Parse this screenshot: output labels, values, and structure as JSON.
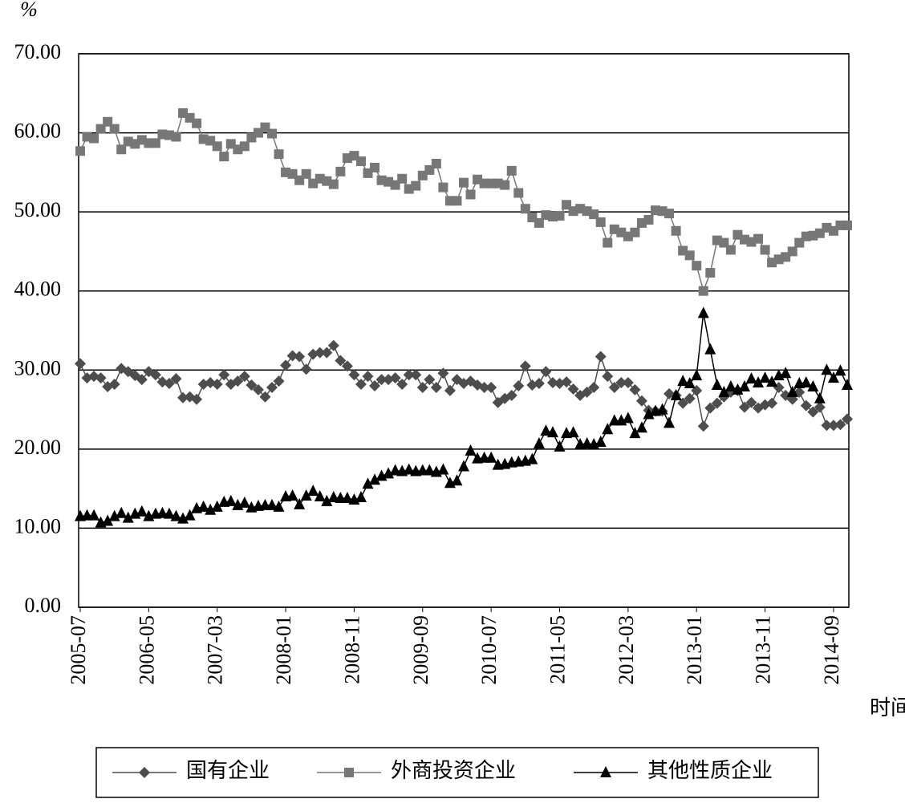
{
  "chart_data": {
    "type": "line",
    "ylabel": "%",
    "xlabel": "时间",
    "categories": [
      "2005-07",
      null,
      null,
      null,
      null,
      null,
      null,
      null,
      null,
      null,
      "2006-05",
      null,
      null,
      null,
      null,
      null,
      null,
      null,
      null,
      null,
      "2007-03",
      null,
      null,
      null,
      null,
      null,
      null,
      null,
      null,
      null,
      "2008-01",
      null,
      null,
      null,
      null,
      null,
      null,
      null,
      null,
      null,
      "2008-11",
      null,
      null,
      null,
      null,
      null,
      null,
      null,
      null,
      null,
      "2009-09",
      null,
      null,
      null,
      null,
      null,
      null,
      null,
      null,
      null,
      "2010-07",
      null,
      null,
      null,
      null,
      null,
      null,
      null,
      null,
      null,
      "2011-05",
      null,
      null,
      null,
      null,
      null,
      null,
      null,
      null,
      null,
      "2012-03",
      null,
      null,
      null,
      null,
      null,
      null,
      null,
      null,
      null,
      "2013-01",
      null,
      null,
      null,
      null,
      null,
      null,
      null,
      null,
      null,
      "2013-11",
      null,
      null,
      null,
      null,
      null,
      null,
      null,
      null,
      null,
      "2014-09",
      null,
      null
    ],
    "series": [
      {
        "name": "国有企业",
        "color": "#4d4d4d",
        "marker": "diamond",
        "values": [
          30.8,
          29,
          29.2,
          29,
          27.9,
          28.2,
          30.2,
          29.8,
          29.3,
          28.8,
          29.8,
          29.4,
          28.5,
          28.3,
          28.9,
          26.5,
          26.6,
          26.3,
          28.2,
          28.4,
          28.2,
          29.4,
          28.2,
          28.6,
          29.2,
          28.1,
          27.5,
          26.6,
          27.8,
          28.6,
          30.6,
          31.8,
          31.7,
          30.1,
          32,
          32.2,
          32.2,
          33.1,
          31.2,
          30.5,
          29.4,
          28.2,
          29.2,
          28,
          28.8,
          28.8,
          29,
          28.2,
          29.4,
          29.4,
          27.8,
          28.8,
          27.8,
          29.6,
          27.4,
          28.8,
          28.3,
          28.6,
          28.1,
          27.8,
          27.8,
          25.9,
          26.4,
          26.8,
          28,
          30.5,
          28.1,
          28.3,
          29.8,
          28.4,
          28.3,
          28.5,
          27.6,
          26.8,
          27.2,
          27.8,
          31.7,
          29.2,
          27.8,
          28.4,
          28.4,
          27.5,
          26.1,
          24.9,
          24.8,
          24.8,
          27,
          26.8,
          25.8,
          26.4,
          27.4,
          22.9,
          25.2,
          25.8,
          26.6,
          27.2,
          27.4,
          25.3,
          25.9,
          25.2,
          25.6,
          25.8,
          27.8,
          26.8,
          26.3,
          27.2,
          25.5,
          24.7,
          25.3,
          23,
          23,
          23.1,
          23.8
        ]
      },
      {
        "name": "外商投资企业",
        "color": "#777777",
        "marker": "square",
        "values": [
          57.7,
          59.5,
          59.3,
          60.5,
          61.4,
          60.5,
          57.9,
          58.9,
          58.6,
          59.1,
          58.7,
          58.7,
          59.8,
          59.7,
          59.5,
          62.5,
          61.9,
          61.2,
          59.2,
          59,
          58.3,
          57,
          58.6,
          57.9,
          58.3,
          59.4,
          60,
          60.7,
          59.9,
          57.3,
          55,
          54.8,
          54,
          54.8,
          53.6,
          54.2,
          53.9,
          53.5,
          55.1,
          56.8,
          57.1,
          56.4,
          54.9,
          55.6,
          54,
          53.8,
          53.4,
          54.2,
          52.9,
          53.3,
          54.6,
          55.3,
          56.1,
          53.1,
          51.4,
          51.4,
          53.7,
          52.2,
          54.1,
          53.6,
          53.6,
          53.6,
          53.4,
          55.2,
          52.4,
          50.4,
          49.3,
          48.6,
          49.6,
          49.4,
          49.5,
          50.9,
          50.1,
          50.4,
          50.1,
          49.7,
          48.7,
          46.1,
          47.8,
          47.4,
          46.9,
          47.4,
          48.6,
          49,
          50.2,
          50.1,
          49.8,
          47.6,
          45.1,
          44.5,
          43.2,
          40,
          42.3,
          46.4,
          46.1,
          45.2,
          47.1,
          46.5,
          46.2,
          46.6,
          45.2,
          43.6,
          44,
          44.3,
          45,
          46.1,
          46.9,
          47,
          47.3,
          48,
          47.6,
          48.3,
          48.3
        ]
      },
      {
        "name": "其他性质企业",
        "color": "#000000",
        "marker": "triangle",
        "values": [
          11.5,
          11.6,
          11.6,
          10.7,
          10.9,
          11.5,
          11.9,
          11.3,
          11.8,
          12.1,
          11.5,
          11.8,
          11.9,
          11.8,
          11.5,
          11.2,
          11.6,
          12.5,
          12.7,
          12.3,
          12.7,
          13.3,
          13.4,
          12.9,
          13.2,
          12.6,
          12.8,
          12.9,
          12.9,
          12.7,
          14,
          14.1,
          13,
          14.1,
          14.7,
          14,
          13.4,
          13.9,
          13.8,
          13.8,
          13.6,
          13.9,
          15.6,
          16.1,
          16.6,
          16.9,
          17.3,
          17.2,
          17.4,
          17.2,
          17.3,
          17.3,
          17.1,
          17.4,
          15.7,
          16,
          17.8,
          19.8,
          18.8,
          18.9,
          18.9,
          18,
          18.1,
          18.3,
          18.4,
          18.5,
          18.7,
          20.7,
          22.3,
          22.1,
          20.3,
          22,
          22.1,
          20.6,
          20.7,
          20.6,
          20.9,
          22.5,
          23.6,
          23.6,
          23.9,
          22,
          22.7,
          24.4,
          24.8,
          25,
          23.3,
          26.8,
          28.6,
          28.3,
          29.3,
          37.2,
          32.6,
          28.1,
          27.2,
          27.9,
          27.5,
          27.9,
          28.9,
          28.4,
          29,
          28.5,
          29.3,
          29.6,
          27.2,
          28.3,
          28.4,
          27.9,
          26.4,
          30,
          29,
          29.9,
          28.1
        ]
      }
    ],
    "ylim": [
      0,
      70
    ],
    "yticks": [
      {
        "value": 0,
        "label": "0.00"
      },
      {
        "value": 10,
        "label": "10.00"
      },
      {
        "value": 20,
        "label": "20.00"
      },
      {
        "value": 30,
        "label": "30.00"
      },
      {
        "value": 40,
        "label": "40.00"
      },
      {
        "value": 50,
        "label": "50.00"
      },
      {
        "value": 60,
        "label": "60.00"
      },
      {
        "value": 70,
        "label": "70.00"
      }
    ],
    "grid": true,
    "legend": "bottom"
  }
}
